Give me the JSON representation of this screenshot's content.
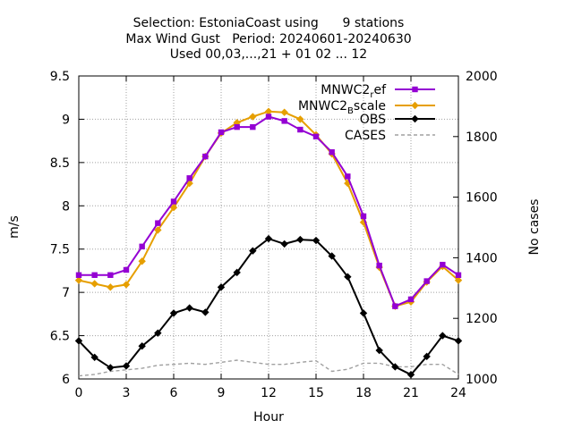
{
  "chart_data": {
    "type": "line",
    "title_lines": [
      "Selection: EstoniaCoast using      9 stations",
      "Max Wind Gust   Period: 20240601-20240630",
      "Used 00,03,...,21 + 01 02 ... 12"
    ],
    "xlabel": "Hour",
    "ylabel": "m/s",
    "y2label": "No cases",
    "xlim": [
      0,
      24
    ],
    "ylim": [
      6,
      9.5
    ],
    "y2lim": [
      1000,
      2000
    ],
    "xticks": [
      "0",
      "3",
      "6",
      "9",
      "12",
      "15",
      "18",
      "21",
      "24"
    ],
    "yticks": [
      "6",
      "6.5",
      "7",
      "7.5",
      "8",
      "8.5",
      "9",
      "9.5"
    ],
    "y2ticks": [
      "1000",
      "1200",
      "1400",
      "1600",
      "1800",
      "2000"
    ],
    "grid": true,
    "legend_position": "top-right",
    "x": [
      0,
      1,
      2,
      3,
      4,
      5,
      6,
      7,
      8,
      9,
      10,
      11,
      12,
      13,
      14,
      15,
      16,
      17,
      18,
      19,
      20,
      21,
      22,
      23,
      24
    ],
    "series": [
      {
        "name_main": "MNWC2",
        "name_sub": "r",
        "name_rest": "ef",
        "color": "#9400d3",
        "marker": "square",
        "axis": "y1",
        "dash": "solid",
        "values": [
          7.2,
          7.2,
          7.2,
          7.26,
          7.53,
          7.8,
          8.05,
          8.32,
          8.57,
          8.85,
          8.91,
          8.91,
          9.03,
          8.98,
          8.88,
          8.8,
          8.62,
          8.34,
          7.88,
          7.31,
          6.84,
          6.92,
          7.13,
          7.32,
          7.2
        ]
      },
      {
        "name_main": "MNWC2",
        "name_sub": "B",
        "name_rest": "scale",
        "color": "#e69f00",
        "marker": "diamond",
        "axis": "y1",
        "dash": "solid",
        "values": [
          7.14,
          7.1,
          7.06,
          7.09,
          7.36,
          7.72,
          7.98,
          8.26,
          8.57,
          8.84,
          8.96,
          9.03,
          9.09,
          9.08,
          9.0,
          8.82,
          8.6,
          8.26,
          7.81,
          7.29,
          6.84,
          6.89,
          7.12,
          7.3,
          7.14
        ]
      },
      {
        "name": "OBS",
        "color": "#000000",
        "marker": "diamond",
        "axis": "y1",
        "dash": "solid",
        "values": [
          6.44,
          6.25,
          6.13,
          6.15,
          6.38,
          6.53,
          6.76,
          6.82,
          6.77,
          7.06,
          7.23,
          7.48,
          7.62,
          7.56,
          7.61,
          7.6,
          7.42,
          7.18,
          6.76,
          6.33,
          6.14,
          6.05,
          6.26,
          6.5,
          6.44
        ]
      },
      {
        "name": "CASES",
        "color": "#a0a0a0",
        "marker": "none",
        "axis": "y2",
        "dash": "dashed",
        "values": [
          1010,
          1015,
          1025,
          1030,
          1035,
          1045,
          1048,
          1052,
          1048,
          1055,
          1062,
          1055,
          1048,
          1048,
          1055,
          1060,
          1025,
          1032,
          1052,
          1052,
          1040,
          1040,
          1048,
          1048,
          1015
        ]
      }
    ]
  }
}
